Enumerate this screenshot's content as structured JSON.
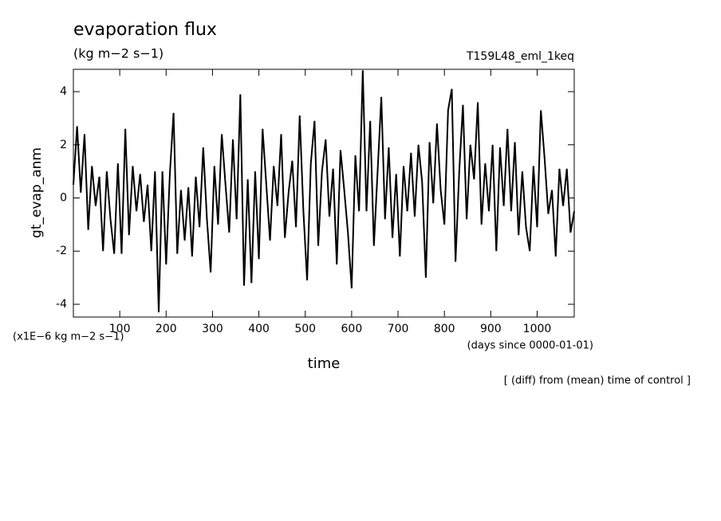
{
  "chart_data": {
    "type": "line",
    "title": "evaporation flux",
    "subtitle": "(kg m−2 s−1)",
    "run_label": "T159L48_eml_1keq",
    "y_label": "gt_evap_anm",
    "y_units": "(x1E−6 kg m−2 s−1)",
    "x_units": "(days since 0000-01-01)",
    "x_label": "time",
    "annotation": "[ (diff) from (mean) time of control ]",
    "color": "#000000",
    "xlim": [
      0,
      1080
    ],
    "ylim": [
      -4.48,
      4.84
    ],
    "xticks": [
      100,
      200,
      300,
      400,
      500,
      600,
      700,
      800,
      900,
      1000
    ],
    "yticks": [
      -4,
      -2,
      0,
      2,
      4
    ],
    "x": [
      0,
      8,
      16,
      24,
      32,
      40,
      48,
      56,
      64,
      72,
      80,
      88,
      96,
      104,
      112,
      120,
      128,
      136,
      144,
      152,
      160,
      168,
      176,
      184,
      192,
      200,
      208,
      216,
      224,
      232,
      240,
      248,
      256,
      264,
      272,
      280,
      288,
      296,
      304,
      312,
      320,
      328,
      336,
      344,
      352,
      360,
      368,
      376,
      384,
      392,
      400,
      408,
      416,
      424,
      432,
      440,
      448,
      456,
      464,
      472,
      480,
      488,
      496,
      504,
      512,
      520,
      528,
      536,
      544,
      552,
      560,
      568,
      576,
      584,
      592,
      600,
      608,
      616,
      624,
      632,
      640,
      648,
      656,
      664,
      672,
      680,
      688,
      696,
      704,
      712,
      720,
      728,
      736,
      744,
      752,
      760,
      768,
      776,
      784,
      792,
      800,
      808,
      816,
      824,
      832,
      840,
      848,
      856,
      864,
      872,
      880,
      888,
      896,
      904,
      912,
      920,
      928,
      936,
      944,
      952,
      960,
      968,
      976,
      984,
      992,
      1000,
      1008,
      1016,
      1024,
      1032,
      1040,
      1048,
      1056,
      1064,
      1072,
      1080
    ],
    "values": [
      0.5,
      2.7,
      0.2,
      2.4,
      -1.2,
      1.2,
      -0.3,
      0.8,
      -2.0,
      1.0,
      -0.8,
      -2.1,
      1.3,
      -2.1,
      2.6,
      -1.4,
      1.2,
      -0.5,
      0.9,
      -0.9,
      0.5,
      -2.0,
      1.0,
      -4.3,
      1.0,
      -2.5,
      0.9,
      3.2,
      -2.1,
      0.3,
      -1.6,
      0.4,
      -2.2,
      0.8,
      -1.1,
      1.9,
      -0.8,
      -2.8,
      1.2,
      -1.0,
      2.4,
      0.5,
      -1.3,
      2.2,
      -0.8,
      3.9,
      -3.3,
      0.7,
      -3.2,
      1.0,
      -2.3,
      2.6,
      0.5,
      -1.6,
      1.2,
      -0.3,
      2.4,
      -1.5,
      0.2,
      1.4,
      -1.1,
      3.1,
      -0.5,
      -3.1,
      1.3,
      2.9,
      -1.8,
      1.0,
      2.2,
      -0.7,
      1.1,
      -2.5,
      1.8,
      0.3,
      -1.3,
      -3.4,
      1.6,
      -0.5,
      4.8,
      -0.5,
      2.9,
      -1.8,
      1.0,
      3.8,
      -0.8,
      1.9,
      -1.5,
      0.9,
      -2.2,
      1.2,
      -0.5,
      1.7,
      -0.7,
      2.0,
      0.6,
      -3.0,
      2.1,
      -0.2,
      2.8,
      0.3,
      -1.0,
      3.3,
      4.1,
      -2.4,
      1.0,
      3.5,
      -0.8,
      2.0,
      0.7,
      3.6,
      -1.0,
      1.3,
      -0.5,
      2.0,
      -2.0,
      1.9,
      -0.3,
      2.6,
      -0.5,
      2.1,
      -1.4,
      1.0,
      -1.1,
      -2.0,
      1.2,
      -1.1,
      3.3,
      1.5,
      -0.6,
      0.3,
      -2.2,
      1.1,
      -0.3,
      1.1,
      -1.3,
      -0.5
    ]
  }
}
